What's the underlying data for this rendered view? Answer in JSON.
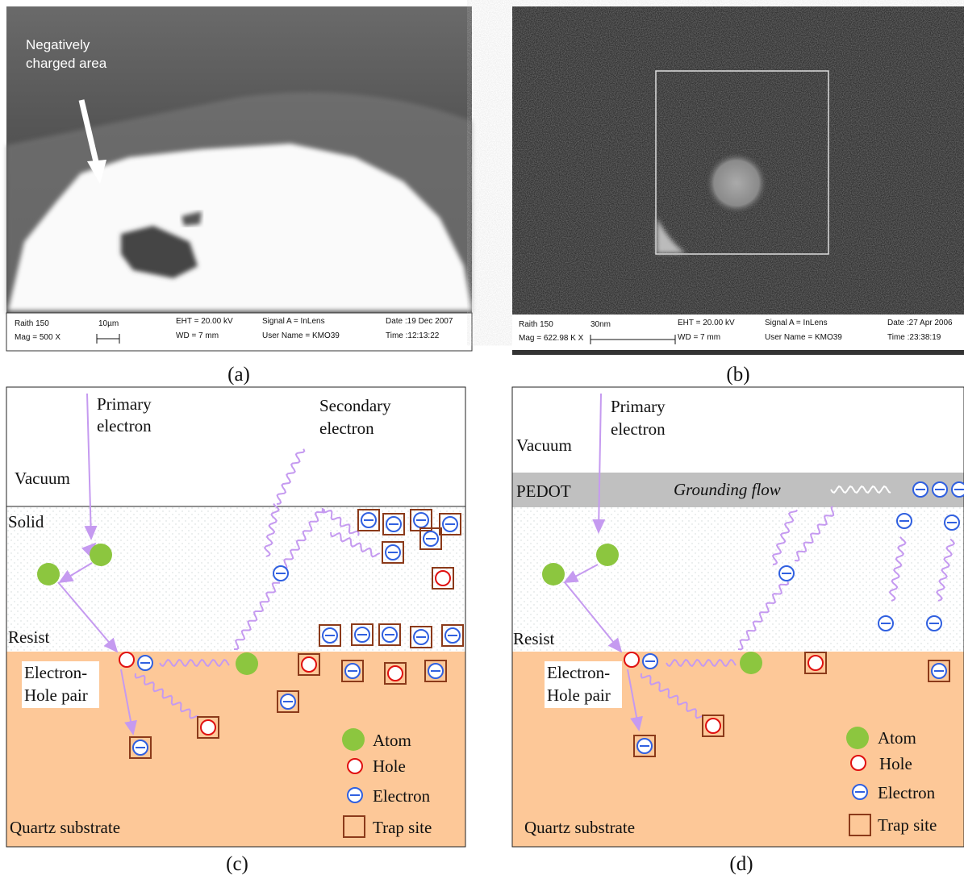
{
  "panel_a": {
    "annotation": [
      "Negatively",
      "charged area"
    ],
    "info_bar": [
      "Raith 150",
      "Mag =  500 X",
      "10µm",
      "EHT = 20.00 kV",
      "WD =   7 mm",
      "Signal A = InLens",
      "User Name = KMO39",
      "Date :19 Dec 2007",
      "Time :12:13:22"
    ],
    "caption": "(a)"
  },
  "panel_b": {
    "info_bar": [
      "Raith 150",
      "Mag = 622.98 K X",
      "30nm",
      "EHT = 20.00 kV",
      "WD =   7 mm",
      "Signal A = InLens",
      "User Name = KMO39",
      "Date :27 Apr 2006",
      "Time :23:38:19"
    ],
    "caption": "(b)"
  },
  "panel_c": {
    "primary_electron": [
      "Primary",
      "electron"
    ],
    "secondary_electron": [
      "Secondary",
      "electron"
    ],
    "vacuum": "Vacuum",
    "solid": "Solid",
    "resist": "Resist",
    "pair": [
      "Electron-",
      "Hole pair"
    ],
    "substrate": "Quartz substrate",
    "legend": [
      "Atom",
      "Hole",
      "Electron",
      "Trap site"
    ],
    "caption": "(c)"
  },
  "panel_d": {
    "primary_electron": [
      "Primary",
      "electron"
    ],
    "vacuum": "Vacuum",
    "pedot": "PEDOT",
    "grounding": "Grounding flow",
    "resist": "Resist",
    "pair": [
      "Electron-",
      "Hole pair"
    ],
    "substrate": "Quartz substrate",
    "legend": [
      "Atom",
      "Hole",
      "Electron",
      "Trap site"
    ],
    "caption": "(d)"
  }
}
